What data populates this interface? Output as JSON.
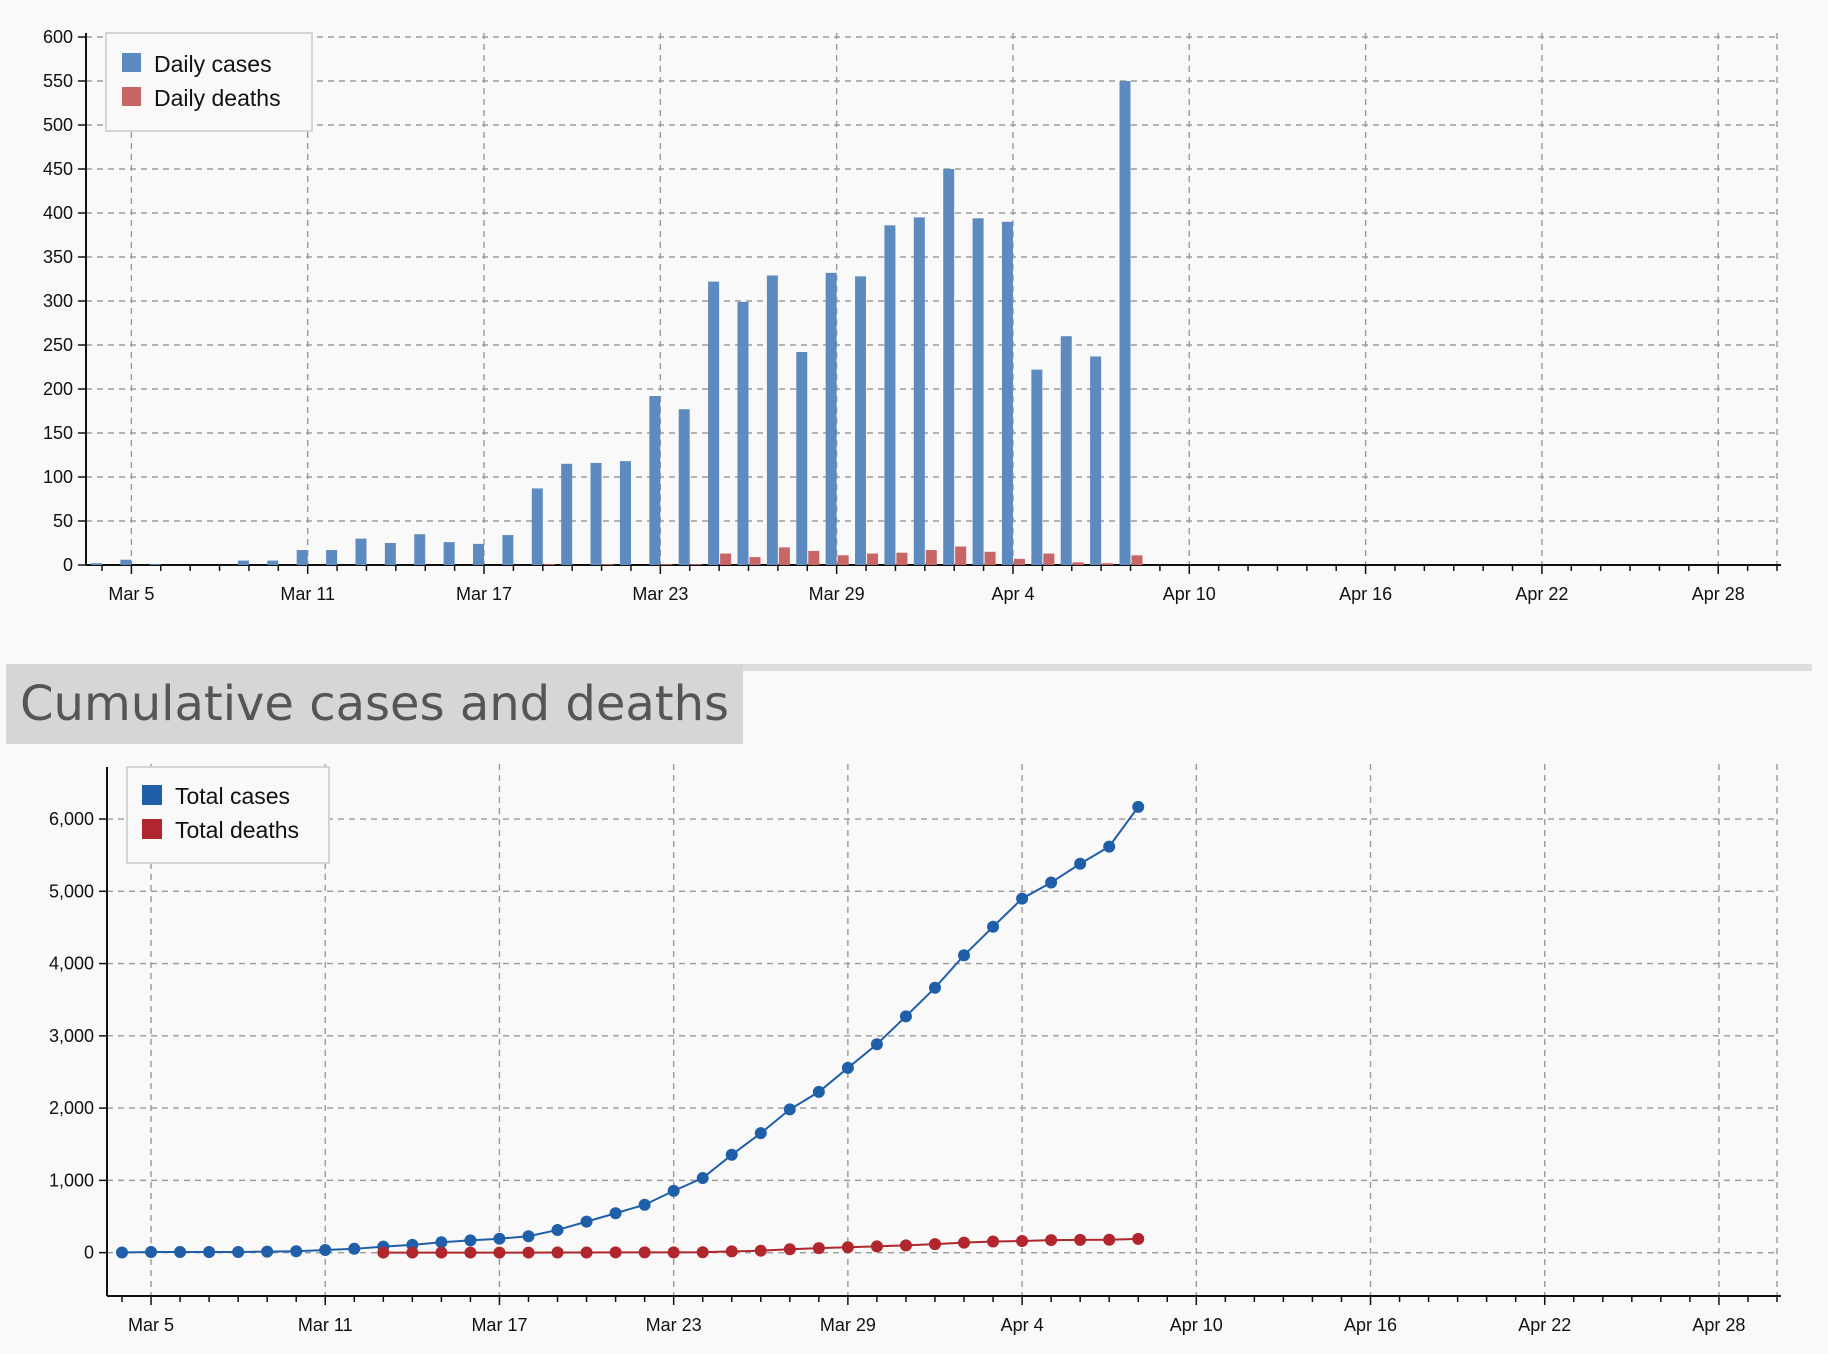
{
  "colors": {
    "daily_cases": "#5e8bbf",
    "daily_deaths": "#c86565",
    "total_cases": "#1f5ea8",
    "total_deaths": "#b0262c"
  },
  "section_title": "Cumulative cases and deaths",
  "chart_data": [
    {
      "type": "bar",
      "x": [
        "Mar 4",
        "Mar 5",
        "Mar 6",
        "Mar 7",
        "Mar 8",
        "Mar 9",
        "Mar 10",
        "Mar 11",
        "Mar 12",
        "Mar 13",
        "Mar 14",
        "Mar 15",
        "Mar 16",
        "Mar 17",
        "Mar 18",
        "Mar 19",
        "Mar 20",
        "Mar 21",
        "Mar 22",
        "Mar 23",
        "Mar 24",
        "Mar 25",
        "Mar 26",
        "Mar 27",
        "Mar 28",
        "Mar 29",
        "Mar 30",
        "Mar 31",
        "Apr 1",
        "Apr 2",
        "Apr 3",
        "Apr 4",
        "Apr 5",
        "Apr 6",
        "Apr 7",
        "Apr 8"
      ],
      "series": [
        {
          "name": "Daily cases",
          "color_key": "daily_cases",
          "values": [
            2,
            6,
            1,
            0,
            0,
            5,
            5,
            17,
            17,
            30,
            25,
            35,
            26,
            24,
            34,
            87,
            115,
            116,
            118,
            192,
            177,
            322,
            299,
            329,
            242,
            332,
            328,
            386,
            395,
            450,
            394,
            390,
            222,
            260,
            237,
            550
          ]
        },
        {
          "name": "Daily deaths",
          "color_key": "daily_deaths",
          "values": [
            0,
            0,
            0,
            0,
            0,
            0,
            0,
            0,
            0,
            0,
            0,
            0,
            0,
            0,
            0,
            1,
            0,
            1,
            0,
            1,
            1,
            13,
            9,
            20,
            16,
            11,
            13,
            14,
            17,
            21,
            15,
            7,
            13,
            3,
            2,
            11
          ]
        }
      ],
      "x_ticks": [
        "Mar 5",
        "Mar 11",
        "Mar 17",
        "Mar 23",
        "Mar 29",
        "Apr 4",
        "Apr 10",
        "Apr 16",
        "Apr 22",
        "Apr 28"
      ],
      "y_ticks": [
        "0",
        "50",
        "100",
        "150",
        "200",
        "250",
        "300",
        "350",
        "400",
        "450",
        "500",
        "550",
        "600"
      ],
      "ylim": [
        0,
        600
      ],
      "grid": true,
      "legend": "top-left"
    },
    {
      "type": "line",
      "x_ticks": [
        "Mar 5",
        "Mar 11",
        "Mar 17",
        "Mar 23",
        "Mar 29",
        "Apr 4",
        "Apr 10",
        "Apr 16",
        "Apr 22",
        "Apr 28"
      ],
      "y_ticks": [
        "0",
        "1,000",
        "2,000",
        "3,000",
        "4,000",
        "5,000",
        "6,000"
      ],
      "ylim": [
        -600,
        6900
      ],
      "grid": true,
      "legend": "top-left",
      "series": [
        {
          "name": "Total cases",
          "color_key": "total_cases",
          "x": [
            "Mar 4",
            "Mar 5",
            "Mar 6",
            "Mar 7",
            "Mar 8",
            "Mar 9",
            "Mar 10",
            "Mar 11",
            "Mar 12",
            "Mar 13",
            "Mar 14",
            "Mar 15",
            "Mar 16",
            "Mar 17",
            "Mar 18",
            "Mar 19",
            "Mar 20",
            "Mar 21",
            "Mar 22",
            "Mar 23",
            "Mar 24",
            "Mar 25",
            "Mar 26",
            "Mar 27",
            "Mar 28",
            "Mar 29",
            "Mar 30",
            "Mar 31",
            "Apr 1",
            "Apr 2",
            "Apr 3",
            "Apr 4",
            "Apr 5",
            "Apr 6",
            "Apr 7",
            "Apr 8"
          ],
          "values": [
            2,
            8,
            9,
            9,
            9,
            14,
            19,
            36,
            53,
            83,
            108,
            143,
            169,
            193,
            227,
            314,
            429,
            545,
            663,
            855,
            1032,
            1354,
            1653,
            1982,
            2224,
            2556,
            2884,
            3270,
            3665,
            4115,
            4509,
            4899,
            5121,
            5381,
            5618,
            6168
          ]
        },
        {
          "name": "Total deaths",
          "color_key": "total_deaths",
          "x": [
            "Mar 13",
            "Mar 14",
            "Mar 15",
            "Mar 16",
            "Mar 17",
            "Mar 18",
            "Mar 19",
            "Mar 20",
            "Mar 21",
            "Mar 22",
            "Mar 23",
            "Mar 24",
            "Mar 25",
            "Mar 26",
            "Mar 27",
            "Mar 28",
            "Mar 29",
            "Mar 30",
            "Mar 31",
            "Apr 1",
            "Apr 2",
            "Apr 3",
            "Apr 4",
            "Apr 5",
            "Apr 6",
            "Apr 7",
            "Apr 8"
          ],
          "values": [
            1,
            1,
            1,
            1,
            1,
            1,
            2,
            2,
            3,
            3,
            4,
            5,
            18,
            27,
            47,
            63,
            74,
            87,
            101,
            118,
            139,
            154,
            161,
            174,
            177,
            179,
            190
          ]
        }
      ]
    }
  ]
}
